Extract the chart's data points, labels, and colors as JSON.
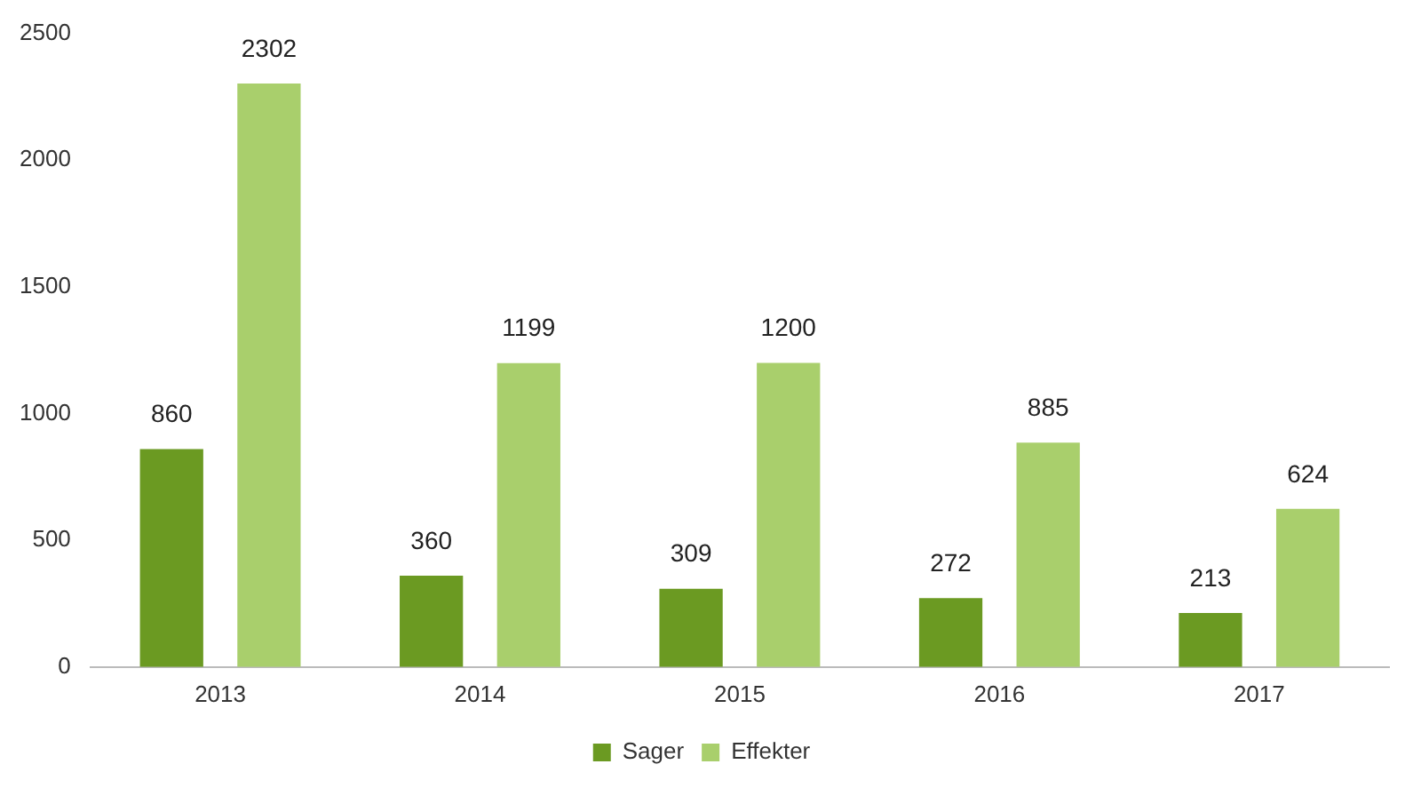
{
  "chart_data": {
    "type": "bar",
    "categories": [
      "2013",
      "2014",
      "2015",
      "2016",
      "2017"
    ],
    "series": [
      {
        "name": "Sager",
        "color": "#6b9a22",
        "values": [
          860,
          360,
          309,
          272,
          213
        ]
      },
      {
        "name": "Effekter",
        "color": "#a9cf6c",
        "values": [
          2302,
          1199,
          1200,
          885,
          624
        ]
      }
    ],
    "ylim": [
      0,
      2500
    ],
    "yticks": [
      0,
      500,
      1000,
      1500,
      2000,
      2500
    ],
    "grid": false,
    "legend": "bottom",
    "data_labels": true
  }
}
